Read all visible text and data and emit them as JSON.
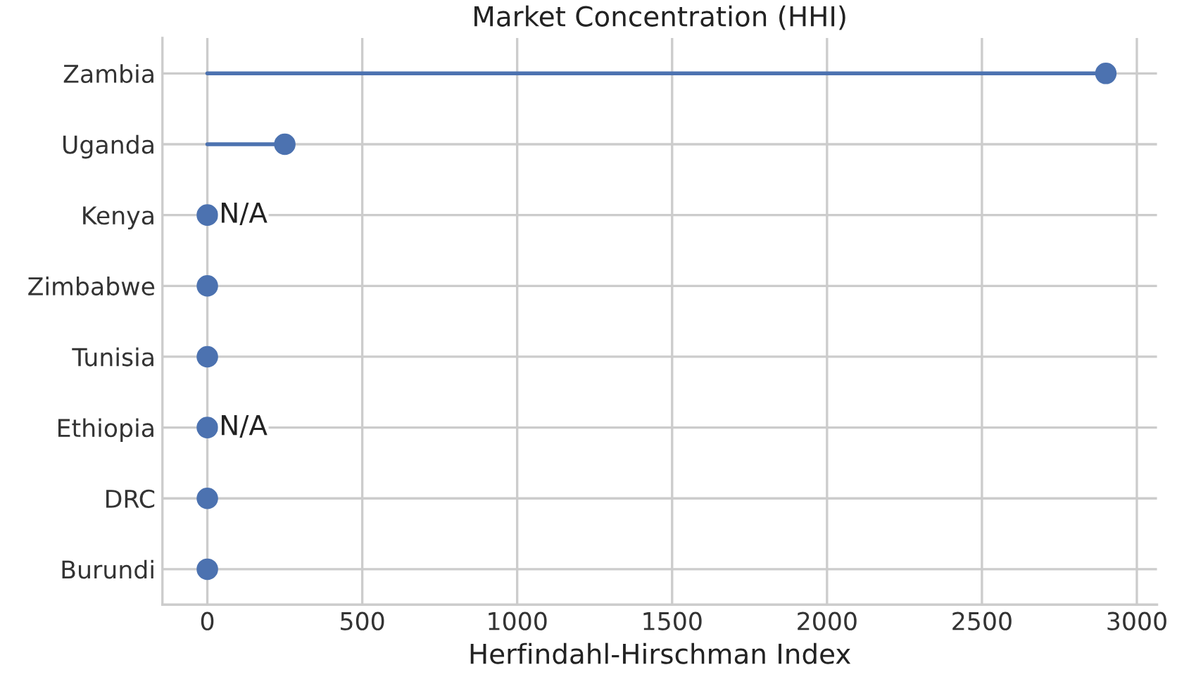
{
  "chart_data": {
    "type": "lollipop",
    "orientation": "horizontal",
    "title": "Market Concentration (HHI)",
    "xlabel": "Herfindahl-Hirschman Index",
    "categories": [
      "Zambia",
      "Uganda",
      "Kenya",
      "Zimbabwe",
      "Tunisia",
      "Ethiopia",
      "DRC",
      "Burundi"
    ],
    "values": [
      2900,
      250,
      0,
      0,
      0,
      0,
      0,
      0
    ],
    "value_labels": [
      null,
      null,
      "N/A",
      null,
      null,
      "N/A",
      null,
      null
    ],
    "color": "#4c72b0",
    "xlim": [
      -145,
      3065
    ],
    "xticks": [
      0,
      500,
      1000,
      1500,
      2000,
      2500,
      3000
    ],
    "grid": true,
    "marker": "circle"
  }
}
